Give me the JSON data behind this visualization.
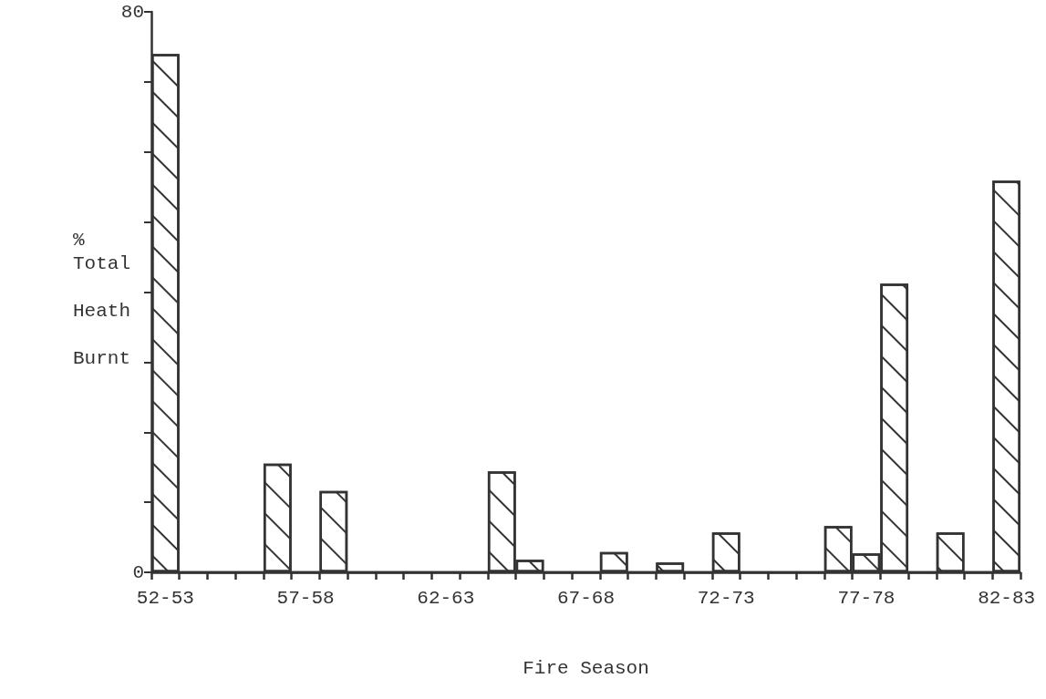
{
  "chart_data": {
    "type": "bar",
    "xlabel": "Fire Season",
    "ylabel": "% Total Heath Burnt",
    "categories": [
      "52-53",
      null,
      null,
      null,
      null,
      "57-58",
      null,
      null,
      null,
      null,
      "62-63",
      null,
      null,
      null,
      null,
      "67-68",
      null,
      null,
      null,
      null,
      "72-73",
      null,
      null,
      null,
      null,
      "77-78",
      null,
      null,
      null,
      null,
      "82-83"
    ],
    "values": [
      74,
      0,
      0,
      0,
      15.5,
      0,
      11.6,
      0,
      0,
      0,
      0,
      0,
      14.4,
      1.8,
      0,
      0,
      2.9,
      0,
      1.4,
      0,
      5.7,
      0,
      0,
      0,
      6.6,
      2.7,
      41.2,
      0,
      5.7,
      0,
      55.9
    ],
    "color": "#ffffff",
    "ylim": [
      0,
      80
    ],
    "yticks": [
      0,
      {
        "value": 10,
        "label": null
      },
      {
        "value": 20,
        "label": null
      },
      {
        "value": 30,
        "label": null
      },
      {
        "value": 40,
        "label": null
      },
      {
        "value": 50,
        "label": null
      },
      {
        "value": 60,
        "label": null
      },
      {
        "value": 70,
        "label": null
      },
      80
    ],
    "grid": false
  }
}
